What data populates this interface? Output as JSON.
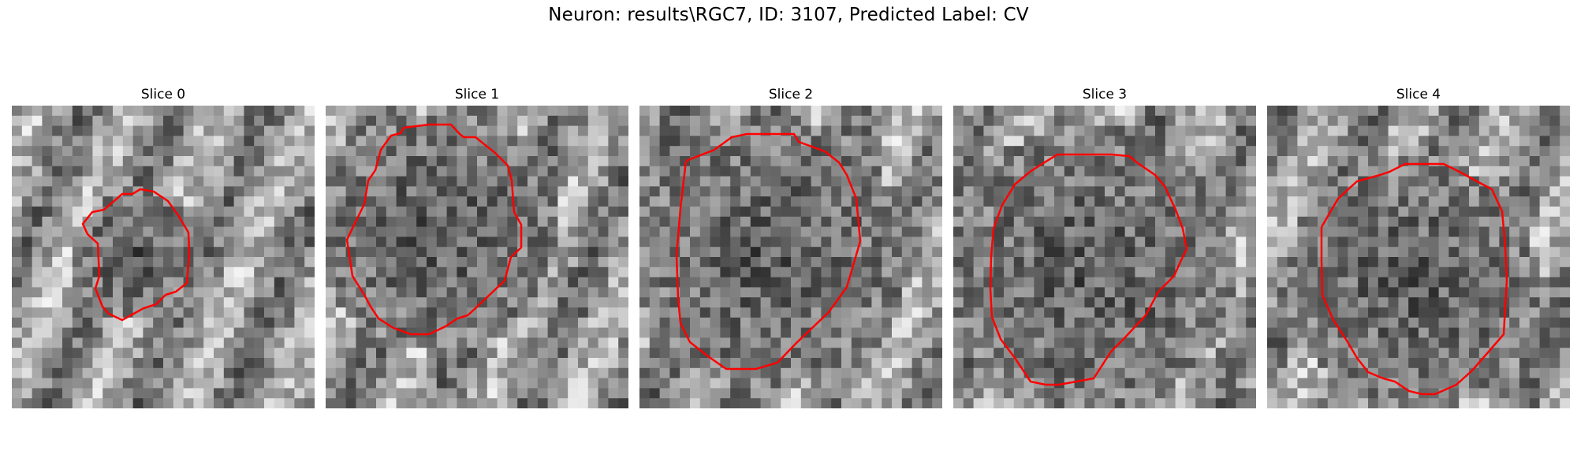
{
  "figure": {
    "title": "Neuron: results\\RGC7, ID: 3107, Predicted Label: CV"
  },
  "panels": [
    {
      "title": "Slice 0"
    },
    {
      "title": "Slice 1"
    },
    {
      "title": "Slice 2"
    },
    {
      "title": "Slice 3"
    },
    {
      "title": "Slice 4"
    }
  ],
  "colors": {
    "contour": "#ff0000",
    "background": "#ffffff"
  }
}
